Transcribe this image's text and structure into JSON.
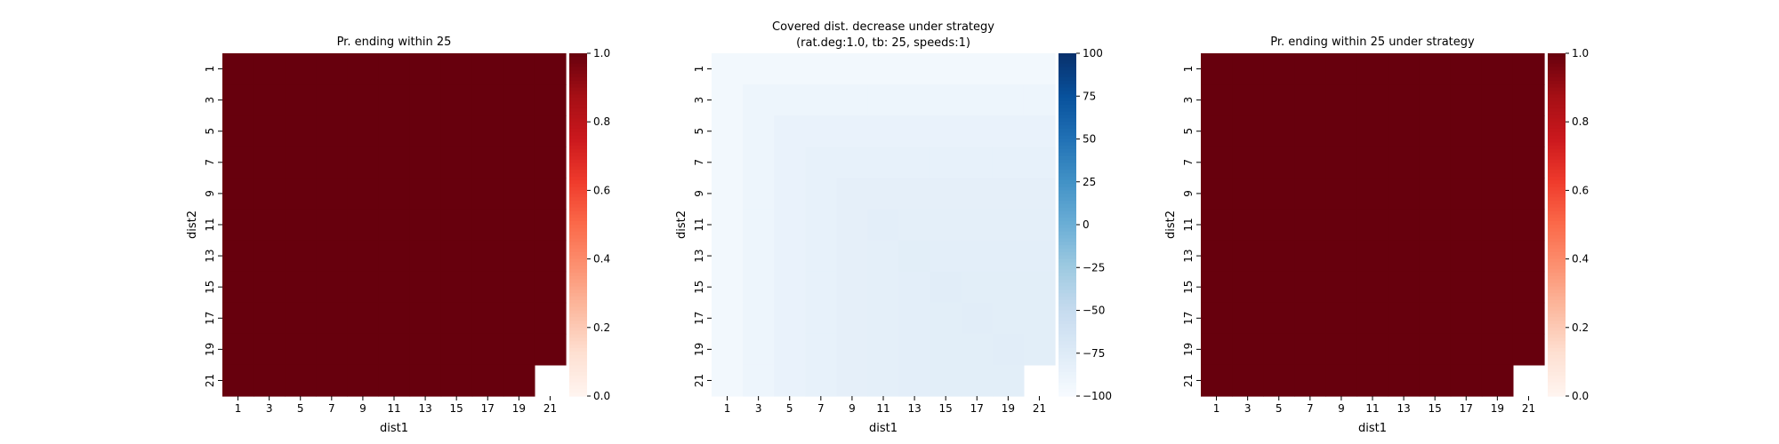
{
  "chart_data": [
    {
      "type": "heatmap",
      "title": "Pr. ending within 25",
      "xlabel": "dist1",
      "ylabel": "dist2",
      "x_ticks": [
        "1",
        "3",
        "5",
        "7",
        "9",
        "11",
        "13",
        "15",
        "17",
        "19",
        "21"
      ],
      "y_ticks": [
        "1",
        "3",
        "5",
        "7",
        "9",
        "11",
        "13",
        "15",
        "17",
        "19",
        "21"
      ],
      "grid_size": 11,
      "value_note": "all shown cells equal 1.0; bottom-right cell empty",
      "values": [
        [
          1,
          1,
          1,
          1,
          1,
          1,
          1,
          1,
          1,
          1,
          1
        ],
        [
          1,
          1,
          1,
          1,
          1,
          1,
          1,
          1,
          1,
          1,
          1
        ],
        [
          1,
          1,
          1,
          1,
          1,
          1,
          1,
          1,
          1,
          1,
          1
        ],
        [
          1,
          1,
          1,
          1,
          1,
          1,
          1,
          1,
          1,
          1,
          1
        ],
        [
          1,
          1,
          1,
          1,
          1,
          1,
          1,
          1,
          1,
          1,
          1
        ],
        [
          1,
          1,
          1,
          1,
          1,
          1,
          1,
          1,
          1,
          1,
          1
        ],
        [
          1,
          1,
          1,
          1,
          1,
          1,
          1,
          1,
          1,
          1,
          1
        ],
        [
          1,
          1,
          1,
          1,
          1,
          1,
          1,
          1,
          1,
          1,
          1
        ],
        [
          1,
          1,
          1,
          1,
          1,
          1,
          1,
          1,
          1,
          1,
          1
        ],
        [
          1,
          1,
          1,
          1,
          1,
          1,
          1,
          1,
          1,
          1,
          1
        ],
        [
          1,
          1,
          1,
          1,
          1,
          1,
          1,
          1,
          1,
          1,
          null
        ]
      ],
      "colormap": "Reds",
      "vmin": 0,
      "vmax": 1,
      "colorbar_ticks": [
        "0.0",
        "0.2",
        "0.4",
        "0.6",
        "0.8",
        "1.0"
      ]
    },
    {
      "type": "heatmap",
      "title": "Covered dist. decrease under strategy",
      "subtitle": "(rat.deg:1.0, tb: 25, speeds:1)",
      "xlabel": "dist1",
      "ylabel": "dist2",
      "x_ticks": [
        "1",
        "3",
        "5",
        "7",
        "9",
        "11",
        "13",
        "15",
        "17",
        "19",
        "21"
      ],
      "y_ticks": [
        "1",
        "3",
        "5",
        "7",
        "9",
        "11",
        "13",
        "15",
        "17",
        "19",
        "21"
      ],
      "grid_size": 11,
      "values": [
        [
          -95,
          -95,
          -95,
          -95,
          -95,
          -95,
          -95,
          -95,
          -95,
          -95,
          -95
        ],
        [
          -95,
          -90,
          -90,
          -90,
          -90,
          -90,
          -90,
          -90,
          -90,
          -90,
          -90
        ],
        [
          -95,
          -90,
          -86,
          -86,
          -86,
          -86,
          -86,
          -86,
          -86,
          -86,
          -86
        ],
        [
          -95,
          -90,
          -86,
          -84,
          -84,
          -84,
          -84,
          -84,
          -84,
          -84,
          -84
        ],
        [
          -95,
          -90,
          -86,
          -84,
          -82,
          -82,
          -82,
          -82,
          -82,
          -82,
          -82
        ],
        [
          -95,
          -90,
          -86,
          -84,
          -82,
          -80,
          -81,
          -81,
          -81,
          -81,
          -81
        ],
        [
          -95,
          -90,
          -86,
          -84,
          -82,
          -81,
          -79,
          -80,
          -80,
          -80,
          -80
        ],
        [
          -95,
          -90,
          -86,
          -84,
          -82,
          -81,
          -80,
          -78,
          -79,
          -79,
          -79
        ],
        [
          -95,
          -90,
          -86,
          -84,
          -82,
          -81,
          -80,
          -79,
          -78,
          -79,
          -79
        ],
        [
          -95,
          -90,
          -86,
          -84,
          -82,
          -81,
          -80,
          -79,
          -79,
          -78,
          -79
        ],
        [
          -95,
          -90,
          -86,
          -84,
          -82,
          -81,
          -80,
          -79,
          -79,
          -79,
          null
        ]
      ],
      "colormap": "Blues",
      "vmin": -100,
      "vmax": 100,
      "colorbar_ticks": [
        "100",
        "75",
        "50",
        "25",
        "0",
        "−25",
        "−50",
        "−75",
        "−100"
      ]
    },
    {
      "type": "heatmap",
      "title": "Pr. ending within 25 under strategy",
      "xlabel": "dist1",
      "ylabel": "dist2",
      "x_ticks": [
        "1",
        "3",
        "5",
        "7",
        "9",
        "11",
        "13",
        "15",
        "17",
        "19",
        "21"
      ],
      "y_ticks": [
        "1",
        "3",
        "5",
        "7",
        "9",
        "11",
        "13",
        "15",
        "17",
        "19",
        "21"
      ],
      "grid_size": 11,
      "value_note": "all shown cells equal 1.0; bottom-right cell empty",
      "values": [
        [
          1,
          1,
          1,
          1,
          1,
          1,
          1,
          1,
          1,
          1,
          1
        ],
        [
          1,
          1,
          1,
          1,
          1,
          1,
          1,
          1,
          1,
          1,
          1
        ],
        [
          1,
          1,
          1,
          1,
          1,
          1,
          1,
          1,
          1,
          1,
          1
        ],
        [
          1,
          1,
          1,
          1,
          1,
          1,
          1,
          1,
          1,
          1,
          1
        ],
        [
          1,
          1,
          1,
          1,
          1,
          1,
          1,
          1,
          1,
          1,
          1
        ],
        [
          1,
          1,
          1,
          1,
          1,
          1,
          1,
          1,
          1,
          1,
          1
        ],
        [
          1,
          1,
          1,
          1,
          1,
          1,
          1,
          1,
          1,
          1,
          1
        ],
        [
          1,
          1,
          1,
          1,
          1,
          1,
          1,
          1,
          1,
          1,
          1
        ],
        [
          1,
          1,
          1,
          1,
          1,
          1,
          1,
          1,
          1,
          1,
          1
        ],
        [
          1,
          1,
          1,
          1,
          1,
          1,
          1,
          1,
          1,
          1,
          1
        ],
        [
          1,
          1,
          1,
          1,
          1,
          1,
          1,
          1,
          1,
          1,
          null
        ]
      ],
      "colormap": "Reds",
      "vmin": 0,
      "vmax": 1,
      "colorbar_ticks": [
        "0.0",
        "0.2",
        "0.4",
        "0.6",
        "0.8",
        "1.0"
      ]
    }
  ]
}
